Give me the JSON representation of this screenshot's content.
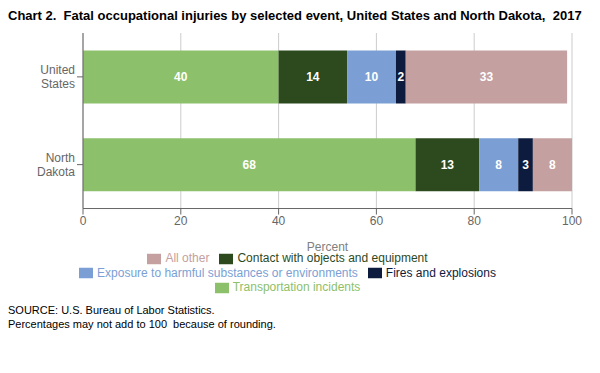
{
  "chart_data": {
    "type": "bar",
    "title": "Chart 2.  Fatal occupational injuries by selected event, United States and North Dakota,  2017",
    "orientation": "horizontal",
    "stacked": true,
    "data_labels": true,
    "grid": true,
    "categories": [
      "United\nStates",
      "North\nDakota"
    ],
    "series": [
      {
        "name": "Transportation incidents",
        "color": "#8dc06b",
        "values": [
          40,
          68
        ]
      },
      {
        "name": "Contact with objects and equipment",
        "color": "#2d4a1e",
        "values": [
          14,
          13
        ]
      },
      {
        "name": "Exposure to harmful substances or environments",
        "color": "#7b9fd4",
        "values": [
          10,
          8
        ]
      },
      {
        "name": "Fires and explosions",
        "color": "#0d1b3e",
        "values": [
          2,
          3
        ]
      },
      {
        "name": "All other",
        "color": "#c4a0a0",
        "values": [
          33,
          8
        ]
      }
    ],
    "xlabel": "Percent",
    "xlim": [
      0,
      100
    ],
    "xticks": [
      0,
      20,
      40,
      60,
      80,
      100
    ],
    "annotations": [
      "SOURCE: U.S. Bureau of Labor Statistics.\nPercentages may not add to 100  because of rounding."
    ]
  }
}
